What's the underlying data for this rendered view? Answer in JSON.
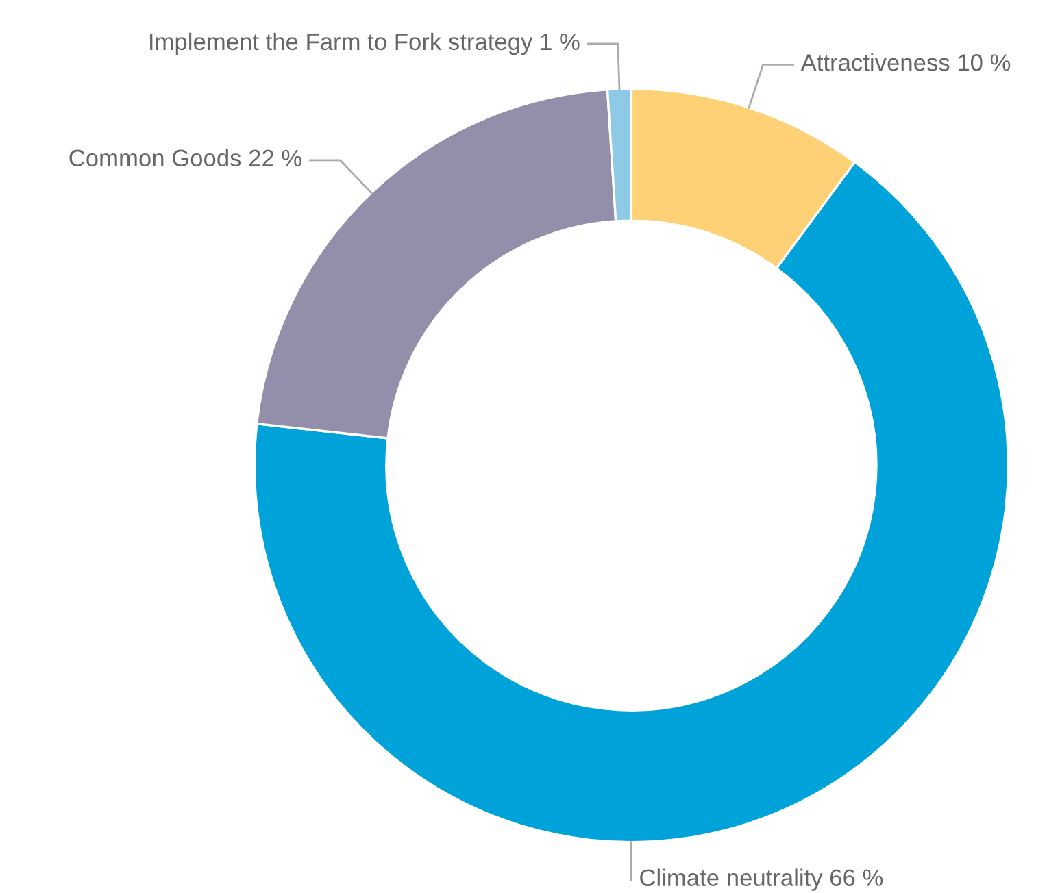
{
  "chart_data": {
    "type": "donut",
    "categories": [
      "Attractiveness",
      "Climate neutrality",
      "Common Goods",
      "Implement the Farm to Fork strategy"
    ],
    "values": [
      10,
      66,
      22,
      1
    ],
    "value_labels": [
      "10 %",
      "66 %",
      "22 %",
      "1 %"
    ],
    "colors": [
      "#fed177",
      "#00a3d9",
      "#938fab",
      "#8ecae6"
    ],
    "legend": false
  }
}
